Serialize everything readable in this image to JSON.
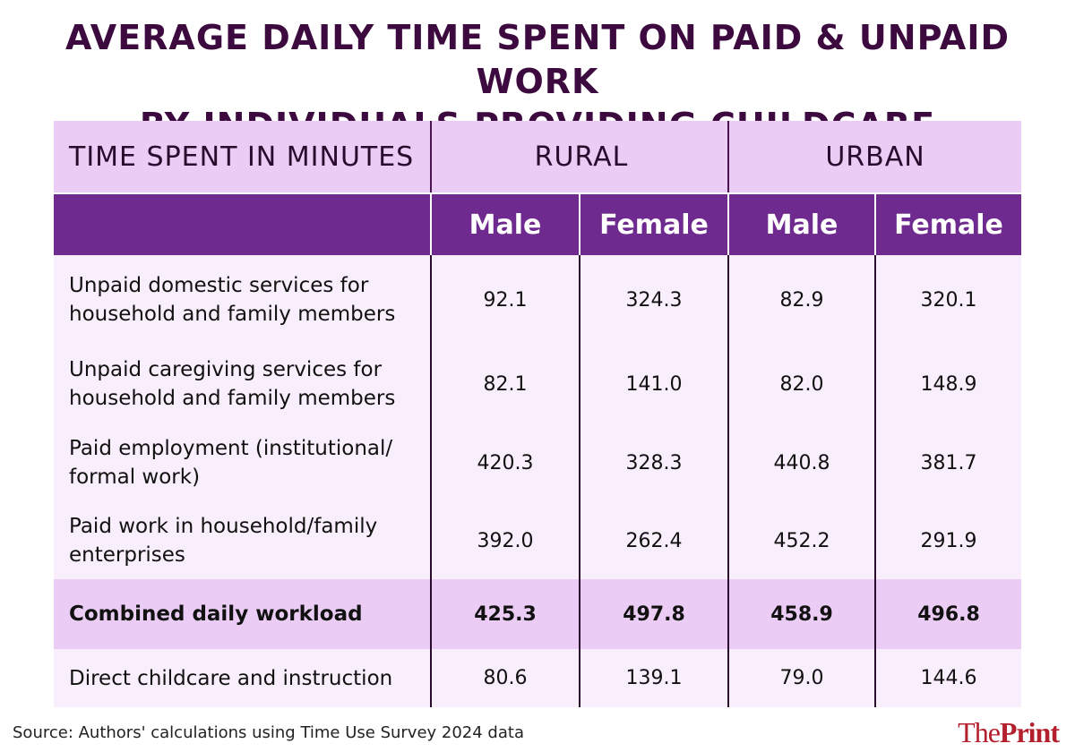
{
  "title_line1": "AVERAGE DAILY TIME SPENT ON PAID & UNPAID WORK",
  "title_line2": "BY INDIVIDUALS PROVIDING CHILDCARE",
  "header": {
    "first_col": "TIME SPENT IN MINUTES",
    "rural": "RURAL",
    "urban": "URBAN",
    "male": "Male",
    "female": "Female"
  },
  "colors": {
    "title": "#3d0a3f",
    "header_light": "#ebccf4",
    "header_dark": "#6e2a8e",
    "body_bg": "#f9eefb",
    "logo": "#b41f2e"
  },
  "chart_data": {
    "type": "table",
    "columns": [
      "Rural Male",
      "Rural Female",
      "Urban Male",
      "Urban Female"
    ],
    "rows": [
      {
        "label_line1": "Unpaid domestic services for",
        "label_line2": "household and family members",
        "values": [
          "92.1",
          "324.3",
          "82.9",
          "320.1"
        ]
      },
      {
        "label_line1": "Unpaid caregiving services for",
        "label_line2": "household and family members",
        "values": [
          "82.1",
          "141.0",
          "82.0",
          "148.9"
        ]
      },
      {
        "label_line1": "Paid employment (institutional/",
        "label_line2": "formal work)",
        "values": [
          "420.3",
          "328.3",
          "440.8",
          "381.7"
        ]
      },
      {
        "label_line1": "Paid work in household/family",
        "label_line2": "enterprises",
        "values": [
          "392.0",
          "262.4",
          "452.2",
          "291.9"
        ]
      },
      {
        "label_line1": "Combined daily workload",
        "label_line2": "",
        "values": [
          "425.3",
          "497.8",
          "458.9",
          "496.8"
        ]
      },
      {
        "label_line1": "Direct childcare and instruction",
        "label_line2": "",
        "values": [
          "80.6",
          "139.1",
          "79.0",
          "144.6"
        ]
      }
    ]
  },
  "source": "Source: Authors' calculations using Time Use Survey 2024 data",
  "logo": {
    "part1": "The",
    "part2": "Print"
  }
}
